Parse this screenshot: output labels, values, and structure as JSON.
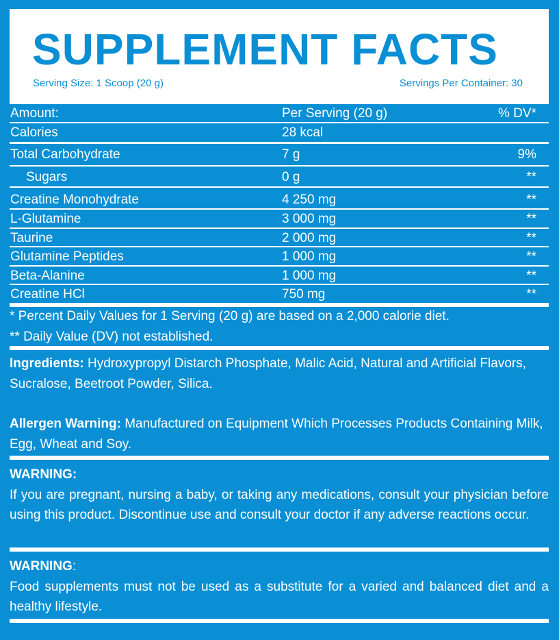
{
  "header": {
    "title": "SUPPLEMENT FACTS",
    "serving_size": "Serving Size: 1 Scoop (20 g)",
    "servings_per_container": "Servings Per Container: 30"
  },
  "table": {
    "columns": {
      "name": "Amount:",
      "amount": "Per Serving (20 g)",
      "dv": "% DV*"
    },
    "rows": [
      {
        "name": "Calories",
        "amount": "28 kcal",
        "dv": ""
      },
      {
        "name": "Total Carbohydrate",
        "amount": "7 g",
        "dv": "9%"
      },
      {
        "name": "Sugars",
        "amount": "0 g",
        "dv": "**"
      },
      {
        "name": "Creatine Monohydrate",
        "amount": "4 250 mg",
        "dv": "**"
      },
      {
        "name": "L-Glutamine",
        "amount": "3 000 mg",
        "dv": "**"
      },
      {
        "name": "Taurine",
        "amount": "2 000 mg",
        "dv": "**"
      },
      {
        "name": "Glutamine Peptides",
        "amount": "1 000 mg",
        "dv": "**"
      },
      {
        "name": "Beta-Alanine",
        "amount": "1 000 mg",
        "dv": "**"
      },
      {
        "name": "Creatine HCl",
        "amount": "750 mg",
        "dv": "**"
      }
    ]
  },
  "footnotes": [
    "* Percent Daily Values for 1 Serving (20 g) are based on a 2,000 calorie diet.",
    "** Daily Value (DV) not established."
  ],
  "ingredients": {
    "label": "Ingredients:",
    "text": " Hydroxypropyl Distarch Phosphate, Malic Acid, Natural and Artificial Flavors, Sucralose, Beetroot Powder, Silica."
  },
  "allergen": {
    "label": "Allergen Warning:",
    "text": " Manufactured on Equipment Which Processes Products Containing Milk, Egg, Wheat and Soy."
  },
  "warning1": {
    "label": "WARNING:",
    "text": "If you are pregnant, nursing a baby, or taking any medications, consult your physician before using this product. Discontinue use and consult your doctor if any adverse reactions occur."
  },
  "warning2": {
    "label": "WARNING",
    "colon": ":",
    "text": "Food supplements must not be used as a substitute for a varied and balanced diet and a healthy lifestyle."
  },
  "colors": {
    "background": "#0a8fd5",
    "header_bg": "#ffffff"
  }
}
